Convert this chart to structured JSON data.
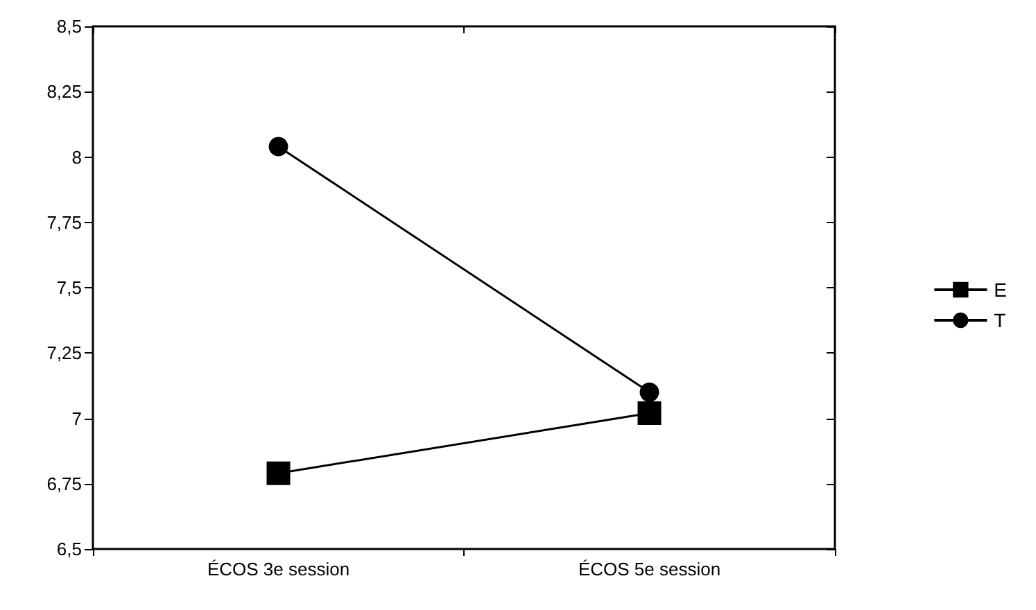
{
  "chart_data": {
    "type": "line",
    "categories": [
      "ÉCOS 3e session",
      "ÉCOS 5e session"
    ],
    "series": [
      {
        "name": "E",
        "color": "#000000",
        "marker": "square",
        "values": [
          6.79,
          7.02
        ]
      },
      {
        "name": "T",
        "color": "#000000",
        "marker": "circle",
        "values": [
          8.04,
          7.1
        ]
      }
    ],
    "ylim": [
      6.5,
      8.5
    ],
    "yticks": [
      {
        "value": 6.5,
        "label": "6,5"
      },
      {
        "value": 6.75,
        "label": "6,75"
      },
      {
        "value": 7,
        "label": "7"
      },
      {
        "value": 7.25,
        "label": "7,25"
      },
      {
        "value": 7.5,
        "label": "7,5"
      },
      {
        "value": 7.75,
        "label": "7,75"
      },
      {
        "value": 8,
        "label": "8"
      },
      {
        "value": 8.25,
        "label": "8,25"
      },
      {
        "value": 8.5,
        "label": "8,5"
      }
    ],
    "grid": false,
    "legend": "right",
    "line_style": "solid"
  }
}
